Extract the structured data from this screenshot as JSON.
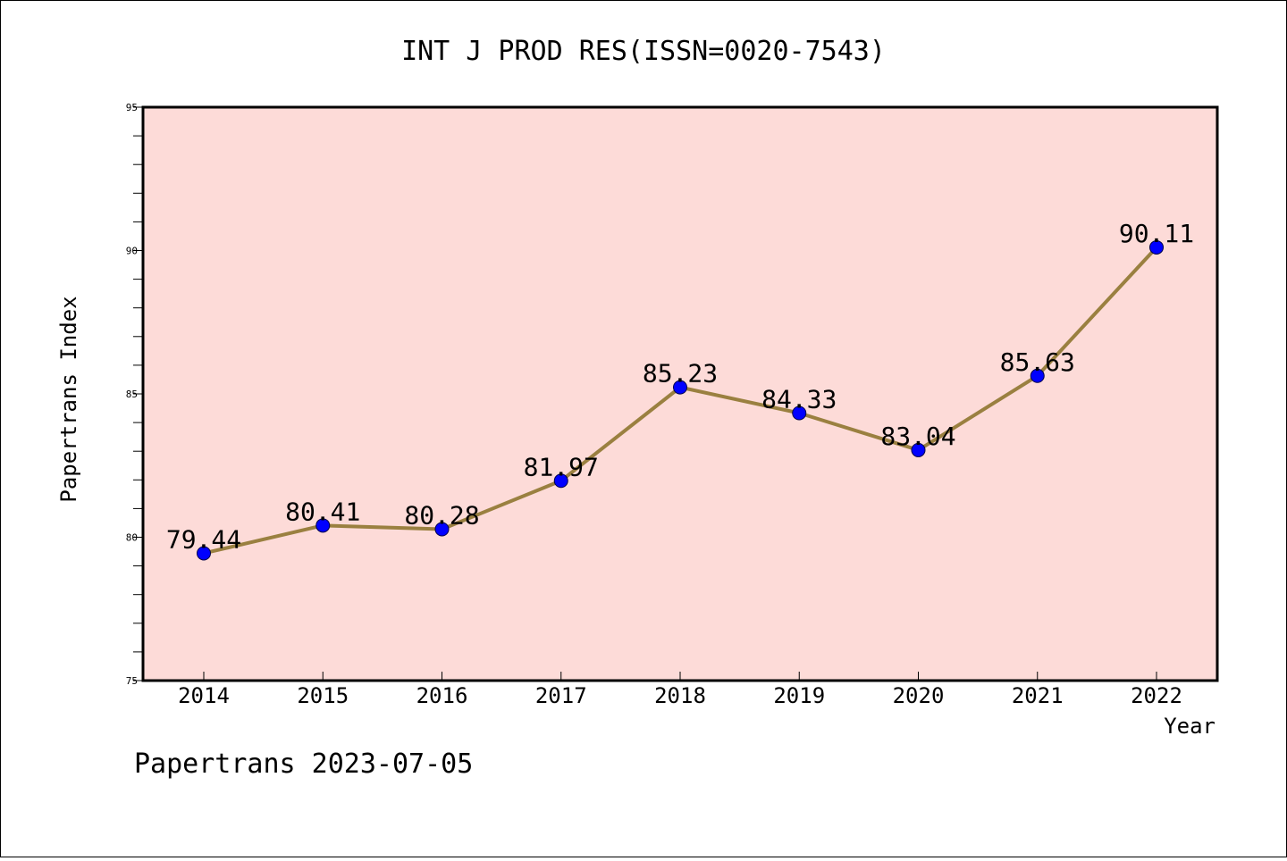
{
  "chart_data": {
    "type": "line",
    "title": "INT J PROD RES(ISSN=0020-7543)",
    "xlabel": "Year",
    "ylabel": "Papertrans Index",
    "categories": [
      "2014",
      "2015",
      "2016",
      "2017",
      "2018",
      "2019",
      "2020",
      "2021",
      "2022"
    ],
    "series": [
      {
        "values": [
          79.44,
          80.41,
          80.28,
          81.97,
          85.23,
          84.33,
          83.04,
          85.63,
          90.11
        ]
      }
    ],
    "data_labels": [
      "79.44",
      "80.41",
      "80.28",
      "81.97",
      "85.23",
      "84.33",
      "83.04",
      "85.63",
      "90.11"
    ],
    "ylim": [
      75,
      95
    ],
    "yticks": [
      "75",
      "80",
      "85",
      "90",
      "95"
    ],
    "grid": false,
    "colors": {
      "plot_background": "#fddbd8",
      "line": "#9a8040",
      "marker": "#0000ff"
    }
  },
  "footer": "Papertrans 2023-07-05"
}
